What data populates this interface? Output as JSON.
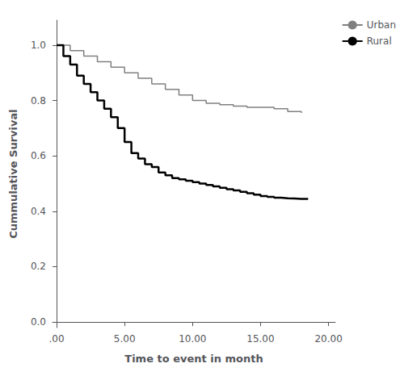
{
  "chart_data": {
    "type": "step",
    "xlabel": "Time to event in month",
    "ylabel": "Cummulative Survival",
    "xlim": [
      -0.3,
      20.5
    ],
    "ylim": [
      -0.02,
      1.09
    ],
    "xticks": [
      {
        "value": 0.0,
        "label": ".00"
      },
      {
        "value": 5.0,
        "label": "5.00"
      },
      {
        "value": 10.0,
        "label": "10.00"
      },
      {
        "value": 15.0,
        "label": "15.00"
      },
      {
        "value": 20.0,
        "label": "20.00"
      }
    ],
    "yticks": [
      {
        "value": 0.0,
        "label": "0.0"
      },
      0.2,
      0.4,
      0.6,
      0.8,
      {
        "value": 1.0,
        "label": "1.0"
      }
    ],
    "grid": false,
    "legend": "right",
    "series": [
      {
        "name": "Urban",
        "color": "#808080",
        "x": [
          0,
          1,
          2,
          3,
          4,
          5,
          6,
          7,
          8,
          9,
          10,
          11,
          12,
          13,
          14,
          15,
          16,
          17,
          18
        ],
        "values": [
          1.0,
          0.98,
          0.96,
          0.94,
          0.92,
          0.9,
          0.88,
          0.86,
          0.84,
          0.82,
          0.8,
          0.79,
          0.785,
          0.78,
          0.775,
          0.775,
          0.77,
          0.76,
          0.755
        ]
      },
      {
        "name": "Rural",
        "color": "#000000",
        "x": [
          0,
          0.5,
          1.0,
          1.5,
          2.0,
          2.5,
          3.0,
          3.5,
          4.0,
          4.5,
          5.0,
          5.5,
          6.0,
          6.5,
          7.0,
          7.5,
          8.0,
          8.5,
          9.0,
          9.5,
          10.0,
          10.5,
          11.0,
          11.5,
          12.0,
          12.5,
          13.0,
          13.5,
          14.0,
          14.5,
          15.0,
          15.5,
          16.0,
          16.5,
          17.0,
          17.5,
          18.0,
          18.5
        ],
        "values": [
          1.0,
          0.96,
          0.93,
          0.89,
          0.86,
          0.83,
          0.8,
          0.77,
          0.74,
          0.7,
          0.65,
          0.61,
          0.59,
          0.57,
          0.56,
          0.54,
          0.53,
          0.52,
          0.515,
          0.51,
          0.505,
          0.5,
          0.495,
          0.49,
          0.485,
          0.48,
          0.475,
          0.47,
          0.465,
          0.46,
          0.455,
          0.452,
          0.449,
          0.447,
          0.446,
          0.445,
          0.445,
          0.445
        ]
      }
    ]
  }
}
